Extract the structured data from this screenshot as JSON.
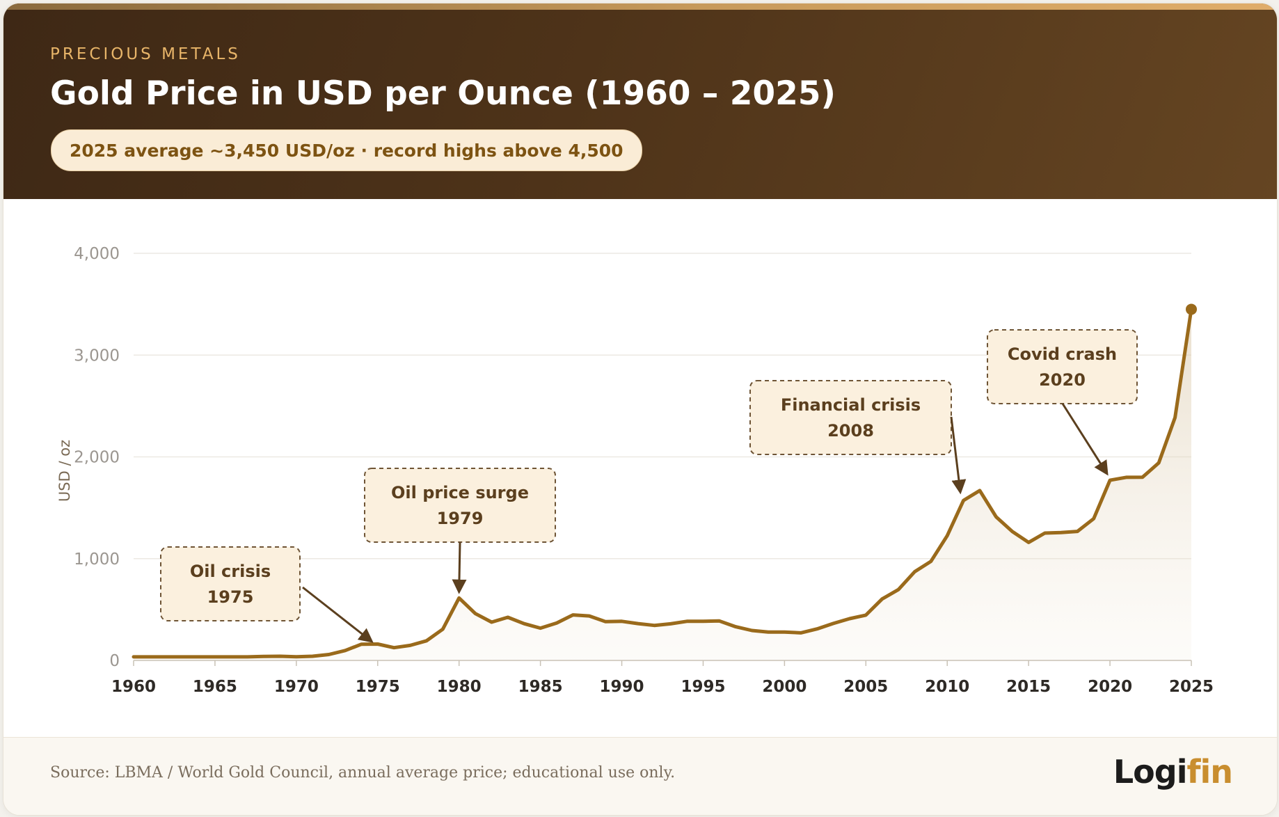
{
  "header": {
    "eyebrow": "PRECIOUS METALS",
    "title": "Gold Price in USD per Ounce (1960 – 2025)",
    "pill": "2025 average ~3,450 USD/oz · record highs above 4,500"
  },
  "footer": {
    "source": "Source: LBMA / World Gold Council, annual average price; educational use only.",
    "logo_part1": "Logi",
    "logo_part2": "fin"
  },
  "colors": {
    "line": "#9a6a1b",
    "accent": "#c98e2f",
    "annotation_fill": "#fbf0de",
    "annotation_border": "#6e5435",
    "annotation_text": "#5b3f1e",
    "grid": "#ece9e3",
    "axis_text": "#9b9690",
    "tick_text": "#2e2a26"
  },
  "chart_data": {
    "type": "line",
    "title": "Gold Price in USD per Ounce (1960 – 2025)",
    "xlabel": "",
    "ylabel": "USD / oz",
    "xlim": [
      1960,
      2025
    ],
    "ylim": [
      0,
      4000
    ],
    "x_ticks": [
      1960,
      1965,
      1970,
      1975,
      1980,
      1985,
      1990,
      1995,
      2000,
      2005,
      2010,
      2015,
      2020,
      2025
    ],
    "y_ticks": [
      0,
      1000,
      2000,
      3000,
      4000
    ],
    "y_tick_labels": [
      "0",
      "1,000",
      "2,000",
      "3,000",
      "4,000"
    ],
    "grid": true,
    "series": [
      {
        "x": [
          1960,
          1961,
          1962,
          1963,
          1964,
          1965,
          1966,
          1967,
          1968,
          1969,
          1970,
          1971,
          1972,
          1973,
          1974,
          1975,
          1976,
          1977,
          1978,
          1979,
          1980,
          1981,
          1982,
          1983,
          1984,
          1985,
          1986,
          1987,
          1988,
          1989,
          1990,
          1991,
          1992,
          1993,
          1994,
          1995,
          1996,
          1997,
          1998,
          1999,
          2000,
          2001,
          2002,
          2003,
          2004,
          2005,
          2006,
          2007,
          2008,
          2009,
          2010,
          2011,
          2012,
          2013,
          2014,
          2015,
          2016,
          2017,
          2018,
          2019,
          2020,
          2021,
          2022,
          2023,
          2024,
          2025
        ],
        "values": [
          35,
          35,
          35,
          35,
          35,
          35,
          35,
          35,
          39,
          41,
          36,
          41,
          58,
          97,
          159,
          161,
          125,
          148,
          193,
          307,
          613,
          460,
          376,
          424,
          361,
          317,
          368,
          447,
          437,
          381,
          384,
          362,
          344,
          360,
          384,
          384,
          388,
          331,
          294,
          279,
          279,
          271,
          310,
          363,
          410,
          445,
          604,
          696,
          872,
          973,
          1225,
          1572,
          1669,
          1411,
          1266,
          1160,
          1251,
          1257,
          1268,
          1393,
          1770,
          1799,
          1800,
          1941,
          2386,
          3450
        ]
      }
    ],
    "end_marker": {
      "x": 2025,
      "y": 3450
    },
    "annotations": [
      {
        "line1": "Oil crisis",
        "line2": "1975",
        "target_x": 1974.6,
        "target_y": 190
      },
      {
        "line1": "Oil price surge",
        "line2": "1979",
        "target_x": 1980,
        "target_y": 680
      },
      {
        "line1": "Financial crisis",
        "line2": "2008",
        "target_x": 2010.8,
        "target_y": 1660
      },
      {
        "line1": "Covid crash",
        "line2": "2020",
        "target_x": 2019.8,
        "target_y": 1840
      }
    ]
  }
}
